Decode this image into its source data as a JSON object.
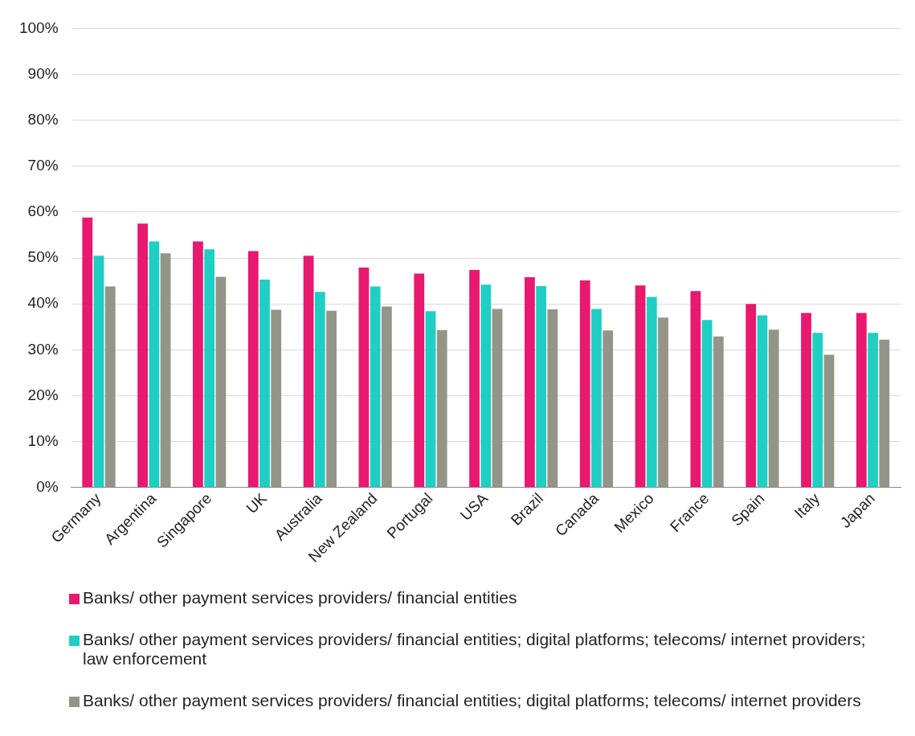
{
  "chart_data": {
    "type": "bar",
    "categories": [
      "Germany",
      "Argentina",
      "Singapore",
      "UK",
      "Australia",
      "New Zealand",
      "Portugal",
      "USA",
      "Brazil",
      "Canada",
      "Mexico",
      "France",
      "Spain",
      "Italy",
      "Japan"
    ],
    "series": [
      {
        "name": "Banks/ other payment services providers/ financial entities",
        "color": "#e8196f",
        "values": [
          58.8,
          57.5,
          53.6,
          51.5,
          50.5,
          47.9,
          46.6,
          47.4,
          45.8,
          45.1,
          44.0,
          42.8,
          40.0,
          38.0,
          38.0
        ]
      },
      {
        "name": "Banks/ other payment services providers/ financial entities; digital platforms; telecoms/ internet providers; law enforcement",
        "color": "#1fcfc4",
        "values": [
          50.5,
          53.6,
          51.9,
          45.3,
          42.6,
          43.8,
          38.4,
          44.2,
          43.9,
          38.9,
          41.5,
          36.5,
          37.5,
          33.7,
          33.7
        ]
      },
      {
        "name": "Banks/ other payment services providers/ financial entities; digital platforms; telecoms/ internet providers",
        "color": "#959488",
        "values": [
          43.8,
          51.0,
          45.9,
          38.7,
          38.5,
          39.4,
          34.3,
          38.9,
          38.8,
          34.2,
          37.0,
          32.9,
          34.4,
          28.9,
          32.2
        ]
      }
    ],
    "ylim": [
      0,
      100
    ],
    "yticks": [
      {
        "value": 0,
        "label": "0%"
      },
      {
        "value": 10,
        "label": "10%"
      },
      {
        "value": 20,
        "label": "20%"
      },
      {
        "value": 30,
        "label": "30%"
      },
      {
        "value": 40,
        "label": "40%"
      },
      {
        "value": 50,
        "label": "50%"
      },
      {
        "value": 60,
        "label": "60%"
      },
      {
        "value": 70,
        "label": "70%"
      },
      {
        "value": 80,
        "label": "80%"
      },
      {
        "value": 90,
        "label": "90%"
      },
      {
        "value": 100,
        "label": "100%"
      }
    ],
    "grid": "y",
    "legend": "bottom"
  }
}
